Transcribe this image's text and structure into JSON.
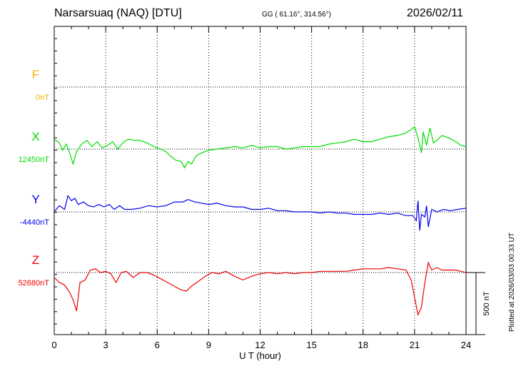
{
  "header": {
    "station": "Narsarsuaq (NAQ)  [DTU]",
    "coords": "GG ( 61.16°, 314.56°)",
    "date": "2026/02/11"
  },
  "footer": {
    "plotted": "Plotted at 2026/03/03 00:33 UT"
  },
  "chart_data": {
    "type": "line",
    "xlabel": "U T (hour)",
    "xlim": [
      0,
      24
    ],
    "xticks": [
      0,
      3,
      6,
      9,
      12,
      15,
      18,
      21,
      24
    ],
    "grid": true,
    "scale_bar": {
      "label": "500 nT",
      "value_nT": 500
    },
    "panels": [
      {
        "name": "F",
        "baseline_label": "0nT",
        "baseline": 0,
        "color": "#f0b400",
        "values": []
      },
      {
        "name": "X",
        "baseline_label": "12450nT",
        "baseline": 12450,
        "color": "#00dd00",
        "values": [
          [
            0,
            12530
          ],
          [
            0.3,
            12500
          ],
          [
            0.5,
            12440
          ],
          [
            0.7,
            12490
          ],
          [
            0.9,
            12420
          ],
          [
            1.1,
            12330
          ],
          [
            1.3,
            12430
          ],
          [
            1.6,
            12490
          ],
          [
            1.9,
            12520
          ],
          [
            2.2,
            12470
          ],
          [
            2.5,
            12510
          ],
          [
            2.8,
            12460
          ],
          [
            3.1,
            12480
          ],
          [
            3.4,
            12510
          ],
          [
            3.7,
            12450
          ],
          [
            4.0,
            12500
          ],
          [
            4.3,
            12530
          ],
          [
            4.7,
            12520
          ],
          [
            5.0,
            12520
          ],
          [
            5.4,
            12500
          ],
          [
            5.8,
            12470
          ],
          [
            6.2,
            12450
          ],
          [
            6.5,
            12430
          ],
          [
            6.8,
            12390
          ],
          [
            7.1,
            12360
          ],
          [
            7.4,
            12350
          ],
          [
            7.6,
            12300
          ],
          [
            7.8,
            12350
          ],
          [
            8.0,
            12330
          ],
          [
            8.3,
            12400
          ],
          [
            8.6,
            12420
          ],
          [
            9.0,
            12440
          ],
          [
            9.5,
            12450
          ],
          [
            10,
            12460
          ],
          [
            10.5,
            12470
          ],
          [
            11,
            12460
          ],
          [
            11.5,
            12480
          ],
          [
            12,
            12460
          ],
          [
            12.5,
            12470
          ],
          [
            13,
            12470
          ],
          [
            13.5,
            12450
          ],
          [
            14,
            12460
          ],
          [
            14.5,
            12470
          ],
          [
            15,
            12470
          ],
          [
            15.5,
            12470
          ],
          [
            16,
            12490
          ],
          [
            16.5,
            12500
          ],
          [
            17,
            12510
          ],
          [
            17.5,
            12530
          ],
          [
            18,
            12510
          ],
          [
            18.5,
            12510
          ],
          [
            19,
            12530
          ],
          [
            19.5,
            12550
          ],
          [
            20,
            12560
          ],
          [
            20.5,
            12580
          ],
          [
            20.8,
            12610
          ],
          [
            21.0,
            12630
          ],
          [
            21.2,
            12540
          ],
          [
            21.4,
            12420
          ],
          [
            21.5,
            12590
          ],
          [
            21.7,
            12480
          ],
          [
            21.9,
            12620
          ],
          [
            22.1,
            12500
          ],
          [
            22.3,
            12520
          ],
          [
            22.6,
            12560
          ],
          [
            23,
            12540
          ],
          [
            23.4,
            12510
          ],
          [
            23.7,
            12480
          ],
          [
            24,
            12470
          ]
        ]
      },
      {
        "name": "Y",
        "baseline_label": "-4440nT",
        "baseline": -4440,
        "color": "#0000ee",
        "values": [
          [
            0,
            -4440
          ],
          [
            0.3,
            -4390
          ],
          [
            0.6,
            -4420
          ],
          [
            0.8,
            -4310
          ],
          [
            1.0,
            -4350
          ],
          [
            1.2,
            -4330
          ],
          [
            1.4,
            -4380
          ],
          [
            1.7,
            -4360
          ],
          [
            2.0,
            -4390
          ],
          [
            2.3,
            -4400
          ],
          [
            2.6,
            -4380
          ],
          [
            2.9,
            -4400
          ],
          [
            3.2,
            -4380
          ],
          [
            3.5,
            -4420
          ],
          [
            3.8,
            -4390
          ],
          [
            4.1,
            -4420
          ],
          [
            4.5,
            -4420
          ],
          [
            5.0,
            -4410
          ],
          [
            5.5,
            -4390
          ],
          [
            6.0,
            -4400
          ],
          [
            6.5,
            -4390
          ],
          [
            7.0,
            -4360
          ],
          [
            7.5,
            -4360
          ],
          [
            7.8,
            -4340
          ],
          [
            8.2,
            -4360
          ],
          [
            8.6,
            -4370
          ],
          [
            9.0,
            -4380
          ],
          [
            9.5,
            -4370
          ],
          [
            10.0,
            -4390
          ],
          [
            10.5,
            -4400
          ],
          [
            11,
            -4400
          ],
          [
            11.5,
            -4420
          ],
          [
            12,
            -4420
          ],
          [
            12.5,
            -4410
          ],
          [
            13,
            -4430
          ],
          [
            13.5,
            -4430
          ],
          [
            14,
            -4440
          ],
          [
            14.5,
            -4440
          ],
          [
            15,
            -4440
          ],
          [
            15.5,
            -4450
          ],
          [
            16,
            -4440
          ],
          [
            16.5,
            -4450
          ],
          [
            17,
            -4450
          ],
          [
            17.5,
            -4460
          ],
          [
            18,
            -4460
          ],
          [
            18.5,
            -4460
          ],
          [
            19,
            -4450
          ],
          [
            19.5,
            -4460
          ],
          [
            20,
            -4450
          ],
          [
            20.5,
            -4470
          ],
          [
            20.9,
            -4470
          ],
          [
            21.1,
            -4510
          ],
          [
            21.2,
            -4350
          ],
          [
            21.3,
            -4590
          ],
          [
            21.4,
            -4460
          ],
          [
            21.6,
            -4480
          ],
          [
            21.7,
            -4390
          ],
          [
            21.8,
            -4560
          ],
          [
            22.0,
            -4420
          ],
          [
            22.3,
            -4440
          ],
          [
            22.7,
            -4420
          ],
          [
            23.1,
            -4430
          ],
          [
            23.5,
            -4420
          ],
          [
            24,
            -4410
          ]
        ]
      },
      {
        "name": "Z",
        "baseline_label": "52680nT",
        "baseline": 52680,
        "color": "#ee0000",
        "values": [
          [
            0,
            52640
          ],
          [
            0.3,
            52600
          ],
          [
            0.6,
            52580
          ],
          [
            0.9,
            52520
          ],
          [
            1.1,
            52460
          ],
          [
            1.3,
            52370
          ],
          [
            1.5,
            52600
          ],
          [
            1.8,
            52620
          ],
          [
            2.1,
            52700
          ],
          [
            2.4,
            52710
          ],
          [
            2.7,
            52680
          ],
          [
            3.0,
            52690
          ],
          [
            3.3,
            52670
          ],
          [
            3.6,
            52600
          ],
          [
            3.9,
            52680
          ],
          [
            4.2,
            52690
          ],
          [
            4.6,
            52640
          ],
          [
            5.0,
            52680
          ],
          [
            5.4,
            52680
          ],
          [
            5.8,
            52660
          ],
          [
            6.2,
            52630
          ],
          [
            6.6,
            52600
          ],
          [
            7.0,
            52570
          ],
          [
            7.4,
            52540
          ],
          [
            7.7,
            52530
          ],
          [
            8.0,
            52570
          ],
          [
            8.4,
            52610
          ],
          [
            8.8,
            52650
          ],
          [
            9.2,
            52680
          ],
          [
            9.6,
            52670
          ],
          [
            10,
            52690
          ],
          [
            10.5,
            52650
          ],
          [
            11,
            52620
          ],
          [
            11.5,
            52650
          ],
          [
            12,
            52670
          ],
          [
            12.5,
            52680
          ],
          [
            13,
            52670
          ],
          [
            13.5,
            52680
          ],
          [
            14,
            52670
          ],
          [
            14.5,
            52680
          ],
          [
            15,
            52680
          ],
          [
            15.5,
            52690
          ],
          [
            16,
            52690
          ],
          [
            16.5,
            52690
          ],
          [
            17,
            52690
          ],
          [
            17.5,
            52700
          ],
          [
            18,
            52710
          ],
          [
            18.5,
            52710
          ],
          [
            19,
            52710
          ],
          [
            19.5,
            52720
          ],
          [
            20,
            52710
          ],
          [
            20.5,
            52700
          ],
          [
            20.8,
            52620
          ],
          [
            21.0,
            52480
          ],
          [
            21.2,
            52340
          ],
          [
            21.4,
            52400
          ],
          [
            21.6,
            52600
          ],
          [
            21.8,
            52760
          ],
          [
            22.0,
            52700
          ],
          [
            22.3,
            52720
          ],
          [
            22.6,
            52700
          ],
          [
            23,
            52700
          ],
          [
            23.4,
            52700
          ],
          [
            23.7,
            52690
          ],
          [
            24,
            52680
          ]
        ]
      }
    ]
  }
}
